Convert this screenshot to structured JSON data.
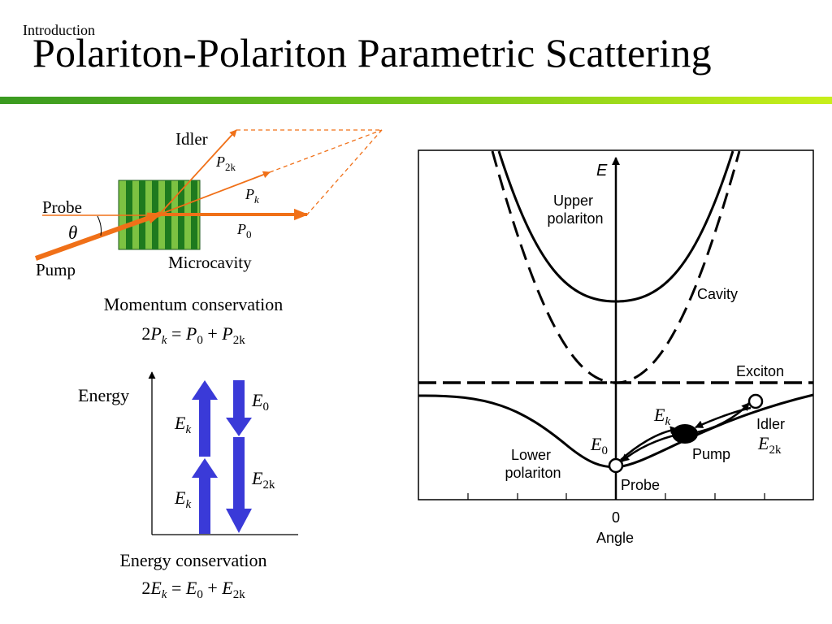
{
  "section": "Introduction",
  "title": "Polariton-Polariton Parametric Scattering",
  "colors": {
    "title_bar_start": "#3a9a20",
    "title_bar_end": "#c8ef1a",
    "arrow_orange": "#f07018",
    "cavity_light_green": "#7dc242",
    "cavity_dark_green": "#1e7a1e",
    "energy_arrow_blue": "#3a3ad8"
  },
  "microcavity": {
    "idler_label": "Idler",
    "probe_label": "Probe",
    "pump_label": "Pump",
    "angle_symbol": "θ",
    "cavity_label": "Microcavity",
    "p2k": {
      "base": "P",
      "sub": "2k"
    },
    "pk": {
      "base": "P",
      "sub": "k"
    },
    "p0": {
      "base": "P",
      "sub": "0"
    }
  },
  "momentum": {
    "heading": "Momentum conservation",
    "eq": {
      "t1": "2",
      "t2": "P",
      "t3": "k",
      "t4": " = ",
      "t5": "P",
      "t6": "0",
      "t7": " + ",
      "t8": "P",
      "t9": "2k"
    }
  },
  "energy_diagram": {
    "axis_label": "Energy",
    "ek_upper": {
      "base": "E",
      "sub": "k"
    },
    "ek_lower": {
      "base": "E",
      "sub": "k"
    },
    "e0": {
      "base": "E",
      "sub": "0"
    },
    "e2k": {
      "base": "E",
      "sub": "2k"
    }
  },
  "energy_conservation": {
    "heading": "Energy conservation",
    "eq": {
      "t1": "2",
      "t2": "E",
      "t3": "k",
      "t4": " = ",
      "t5": "E",
      "t6": "0",
      "t7": " + ",
      "t8": "E",
      "t9": "2k"
    }
  },
  "dispersion_plot": {
    "y_axis_label": "E",
    "upper_polariton": [
      "Upper",
      "polariton"
    ],
    "cavity": "Cavity",
    "exciton": "Exciton",
    "lower_polariton": [
      "Lower",
      "polariton"
    ],
    "pump": "Pump",
    "probe": "Probe",
    "idler": "Idler",
    "ek": {
      "base": "E",
      "sub": "k"
    },
    "e0": {
      "base": "E",
      "sub": "0"
    },
    "e2k": {
      "base": "E",
      "sub": "2k"
    },
    "x_tick_zero": "0",
    "x_axis_label": "Angle"
  }
}
